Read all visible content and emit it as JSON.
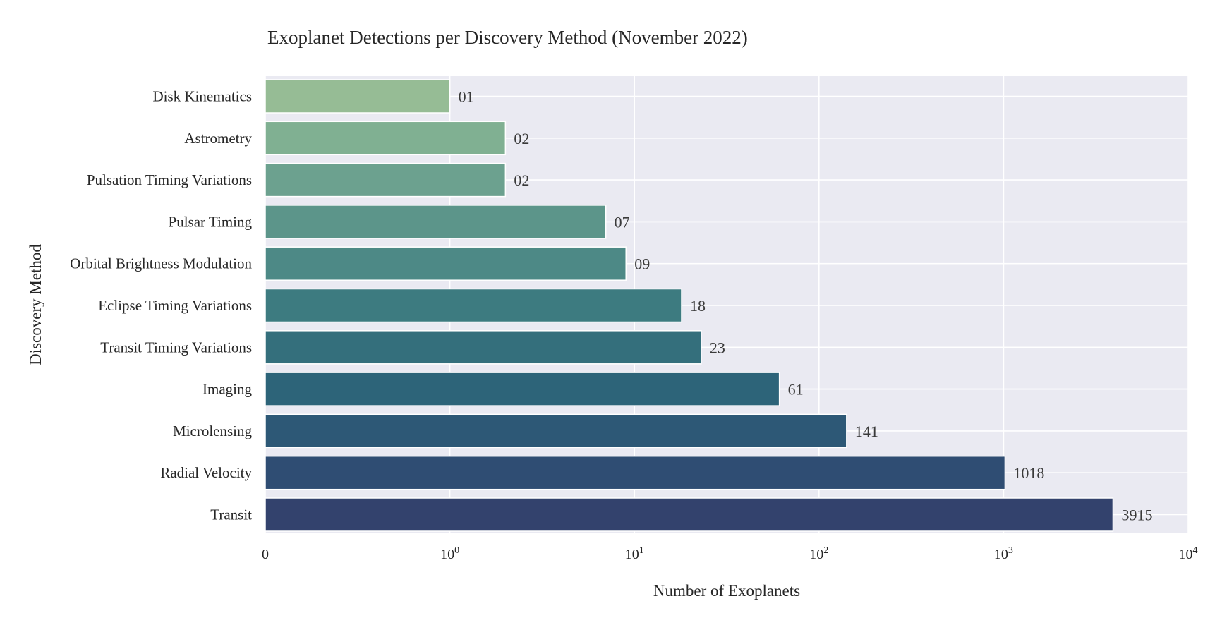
{
  "chart_data": {
    "type": "bar",
    "orientation": "horizontal",
    "title": "Exoplanet Detections per Discovery Method (November 2022)",
    "xlabel": "Number of Exoplanets",
    "ylabel": "Discovery Method",
    "xscale": "symlog",
    "xlim": [
      0,
      10000
    ],
    "grid": true,
    "background": "#eaeaf2",
    "x_ticks": [
      {
        "value": 0,
        "base": "0",
        "exp": ""
      },
      {
        "value": 1,
        "base": "10",
        "exp": "0"
      },
      {
        "value": 10,
        "base": "10",
        "exp": "1"
      },
      {
        "value": 100,
        "base": "10",
        "exp": "2"
      },
      {
        "value": 1000,
        "base": "10",
        "exp": "3"
      },
      {
        "value": 10000,
        "base": "10",
        "exp": "4"
      }
    ],
    "categories": [
      "Disk Kinematics",
      "Astrometry",
      "Pulsation Timing Variations",
      "Pulsar Timing",
      "Orbital Brightness Modulation",
      "Eclipse Timing Variations",
      "Transit Timing Variations",
      "Imaging",
      "Microlensing",
      "Radial Velocity",
      "Transit"
    ],
    "values": [
      1,
      2,
      2,
      7,
      9,
      18,
      23,
      61,
      141,
      1018,
      3915
    ],
    "data_labels": [
      "01",
      "02",
      "02",
      "07",
      "09",
      "18",
      "23",
      "61",
      "141",
      "1018",
      "3915"
    ],
    "colors": [
      "#96bc95",
      "#80b092",
      "#6ca18f",
      "#5c958a",
      "#4d8986",
      "#3d7b80",
      "#346f7c",
      "#2d6479",
      "#2d5876",
      "#2f4d73",
      "#33426d"
    ]
  }
}
